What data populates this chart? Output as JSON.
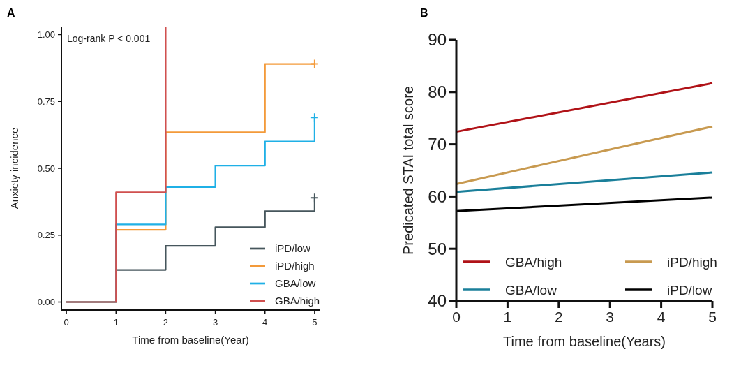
{
  "chart_data": [
    {
      "type": "step",
      "title": "A",
      "xlabel": "Time from baseline(Year)",
      "ylabel": "Anxiety incidence",
      "annotations": [
        "Log-rank  P < 0.001"
      ],
      "xlim": [
        -0.1,
        5.1
      ],
      "ylim": [
        -0.03,
        1.03
      ],
      "xticks": [
        0,
        1,
        2,
        3,
        4,
        5
      ],
      "yticks": [
        {
          "value": 0,
          "label": "0.00"
        },
        {
          "value": 0.25,
          "label": "0.25"
        },
        {
          "value": 0.5,
          "label": "0.50"
        },
        {
          "value": 0.75,
          "label": "0.75"
        },
        {
          "value": 1,
          "label": "1.00"
        }
      ],
      "grid": false,
      "legend": "bottom right",
      "line_style": "solid",
      "series": [
        {
          "name": "iPD/low",
          "color": "#46565c",
          "x": [
            0,
            1,
            2,
            3,
            4,
            5
          ],
          "values": [
            0,
            0.12,
            0.21,
            0.28,
            0.34,
            0.39
          ]
        },
        {
          "name": "iPD/high",
          "color": "#f39a3a",
          "x": [
            0,
            1,
            2,
            3,
            4,
            5
          ],
          "values": [
            0,
            0.27,
            0.635,
            0.635,
            0.89,
            0.89
          ]
        },
        {
          "name": "GBA/low",
          "color": "#1fb0e6",
          "x": [
            0,
            1,
            2,
            3,
            4,
            5
          ],
          "values": [
            0,
            0.29,
            0.43,
            0.51,
            0.6,
            0.69
          ]
        },
        {
          "name": "GBA/high",
          "color": "#d0504f",
          "x": [
            0,
            1,
            2
          ],
          "values": [
            0,
            0.41,
            1.03
          ]
        },
        {
          "type": "scatter",
          "marker": "cross",
          "color": "#46565c",
          "x": [
            5
          ],
          "values": [
            0.39
          ]
        },
        {
          "type": "scatter",
          "marker": "cross",
          "color": "#f39a3a",
          "x": [
            5
          ],
          "values": [
            0.89
          ]
        },
        {
          "type": "scatter",
          "marker": "cross",
          "color": "#1fb0e6",
          "x": [
            5
          ],
          "values": [
            0.69
          ]
        }
      ]
    },
    {
      "type": "line",
      "title": "B",
      "xlabel": "Time from baseline(Years)",
      "ylabel": "Predicated STAI total score",
      "xlim": [
        0,
        5
      ],
      "ylim": [
        40,
        90
      ],
      "xticks": [
        0,
        1,
        2,
        3,
        4,
        5
      ],
      "yticks": [
        40,
        50,
        60,
        70,
        80,
        90
      ],
      "grid": false,
      "legend": "bottom",
      "line_style": "solid",
      "series": [
        {
          "name": "GBA/high",
          "color": "#b01217",
          "x": [
            0,
            5
          ],
          "values": [
            72.4,
            81.7
          ]
        },
        {
          "name": "iPD/high",
          "color": "#c89a50",
          "x": [
            0,
            5
          ],
          "values": [
            62.4,
            73.4
          ]
        },
        {
          "name": "GBA/low",
          "color": "#1a7f9a",
          "x": [
            0,
            5
          ],
          "values": [
            60.9,
            64.6
          ]
        },
        {
          "name": "iPD/low",
          "color": "#000000",
          "x": [
            0,
            5
          ],
          "values": [
            57.2,
            59.8
          ]
        }
      ]
    }
  ]
}
